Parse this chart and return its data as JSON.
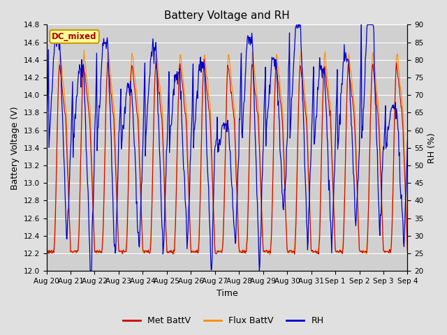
{
  "title": "Battery Voltage and RH",
  "xlabel": "Time",
  "ylabel_left": "Battery Voltage (V)",
  "ylabel_right": "RH (%)",
  "annotation": "DC_mixed",
  "ylim_left": [
    12.0,
    14.8
  ],
  "ylim_right": [
    20,
    90
  ],
  "yticks_left": [
    12.0,
    12.2,
    12.4,
    12.6,
    12.8,
    13.0,
    13.2,
    13.4,
    13.6,
    13.8,
    14.0,
    14.2,
    14.4,
    14.6,
    14.8
  ],
  "yticks_right": [
    20,
    25,
    30,
    35,
    40,
    45,
    50,
    55,
    60,
    65,
    70,
    75,
    80,
    85,
    90
  ],
  "xtick_labels": [
    "Aug 20",
    "Aug 21",
    "Aug 22",
    "Aug 23",
    "Aug 24",
    "Aug 25",
    "Aug 26",
    "Aug 27",
    "Aug 28",
    "Aug 29",
    "Aug 30",
    "Aug 31",
    "Sep 1",
    "Sep 2",
    "Sep 3",
    "Sep 4"
  ],
  "n_days": 15,
  "bg_color": "#e0e0e0",
  "plot_bg_color": "#d0d0d0",
  "grid_color": "#ffffff",
  "met_battv_color": "#cc0000",
  "flux_battv_color": "#ff8c00",
  "rh_color": "#0000cc",
  "legend_entries": [
    "Met BattV",
    "Flux BattV",
    "RH"
  ],
  "annotation_bg": "#ffff99",
  "annotation_edge": "#cc9900",
  "annotation_text_color": "#aa0000",
  "title_fontsize": 11,
  "axis_fontsize": 9,
  "tick_fontsize": 7.5,
  "legend_fontsize": 9
}
